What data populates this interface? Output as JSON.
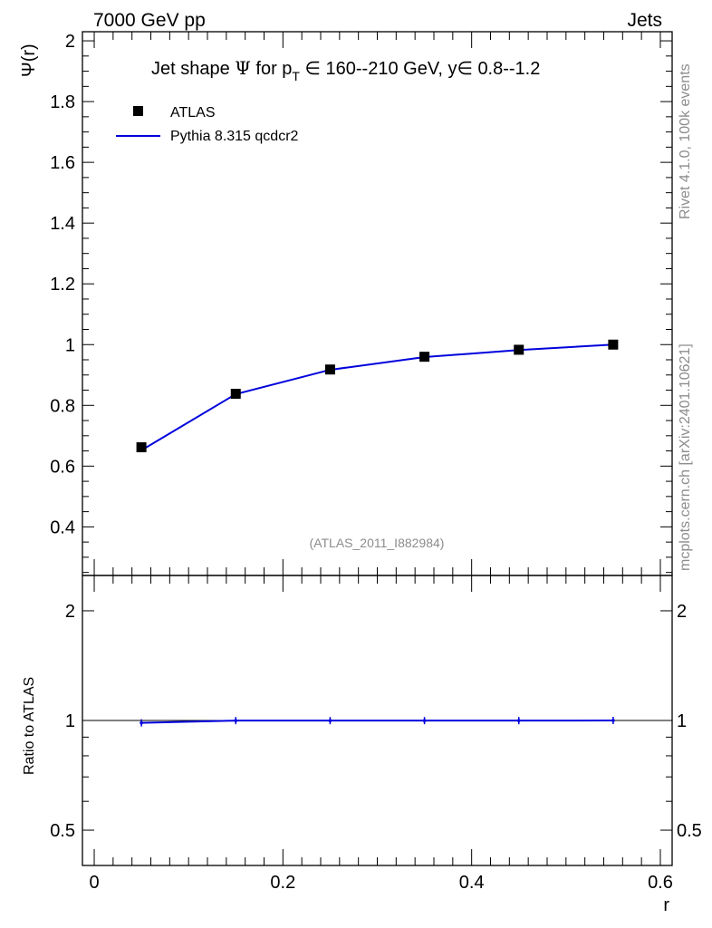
{
  "header": {
    "left": "7000 GeV pp",
    "right": "Jets"
  },
  "side_labels": {
    "rivet": "Rivet 4.1.0,  100k events",
    "mcplots": "mcplots.cern.ch [arXiv:2401.10621]"
  },
  "watermark": "(ATLAS_2011_I882984)",
  "colors": {
    "data": "#000000",
    "mc": "#0000dd",
    "grey_text": "#8c8c8c"
  },
  "chart_data": [
    {
      "type": "line",
      "title_parts": {
        "pre": "Jet shape ",
        "psi": "Ψ",
        "for": " for p",
        "sub": "T",
        "in1": " ∈ ",
        "range1": "160--210 GeV, y",
        "in2": "∈ ",
        "range2": "0.8--1.2"
      },
      "ylabel": "Ψ(r)",
      "ylim": [
        0.24,
        2.03
      ],
      "yticks": [
        0.4,
        0.6,
        0.8,
        1,
        1.2,
        1.4,
        1.6,
        1.8,
        2
      ],
      "ytick_labels": [
        "0.4",
        "0.6",
        "0.8",
        "1",
        "1.2",
        "1.4",
        "1.6",
        "1.8",
        "2"
      ],
      "xlim": [
        -0.0125,
        0.6125
      ],
      "legend": {
        "position": "top-left",
        "entries": [
          "ATLAS",
          "Pythia 8.315 qcdcr2"
        ]
      },
      "series": [
        {
          "name": "ATLAS",
          "style": "markers",
          "x": [
            0.05,
            0.15,
            0.25,
            0.35,
            0.45,
            0.55
          ],
          "y": [
            0.662,
            0.838,
            0.918,
            0.96,
            0.983,
            1.0
          ]
        },
        {
          "name": "Pythia 8.315 qcdcr2",
          "style": "line",
          "x": [
            0.05,
            0.15,
            0.25,
            0.35,
            0.45,
            0.55
          ],
          "y": [
            0.652,
            0.837,
            0.917,
            0.959,
            0.982,
            1.0
          ]
        }
      ]
    },
    {
      "type": "line",
      "ylabel": "Ratio to ATLAS",
      "xlabel": "r",
      "yscale": "log",
      "ylim": [
        0.4,
        2.5
      ],
      "yticks": [
        0.5,
        1,
        2
      ],
      "ytick_labels": [
        "0.5",
        "1",
        "2"
      ],
      "xlim": [
        -0.0125,
        0.6125
      ],
      "xticks": [
        0,
        0.2,
        0.4,
        0.6
      ],
      "xtick_labels": [
        "0",
        "0.2",
        "0.4",
        "0.6"
      ],
      "series": [
        {
          "name": "Pythia 8.315 qcdcr2 / ATLAS",
          "x": [
            0.05,
            0.15,
            0.25,
            0.35,
            0.45,
            0.55
          ],
          "y": [
            0.985,
            0.999,
            0.999,
            0.999,
            0.999,
            1.0
          ]
        }
      ]
    }
  ]
}
